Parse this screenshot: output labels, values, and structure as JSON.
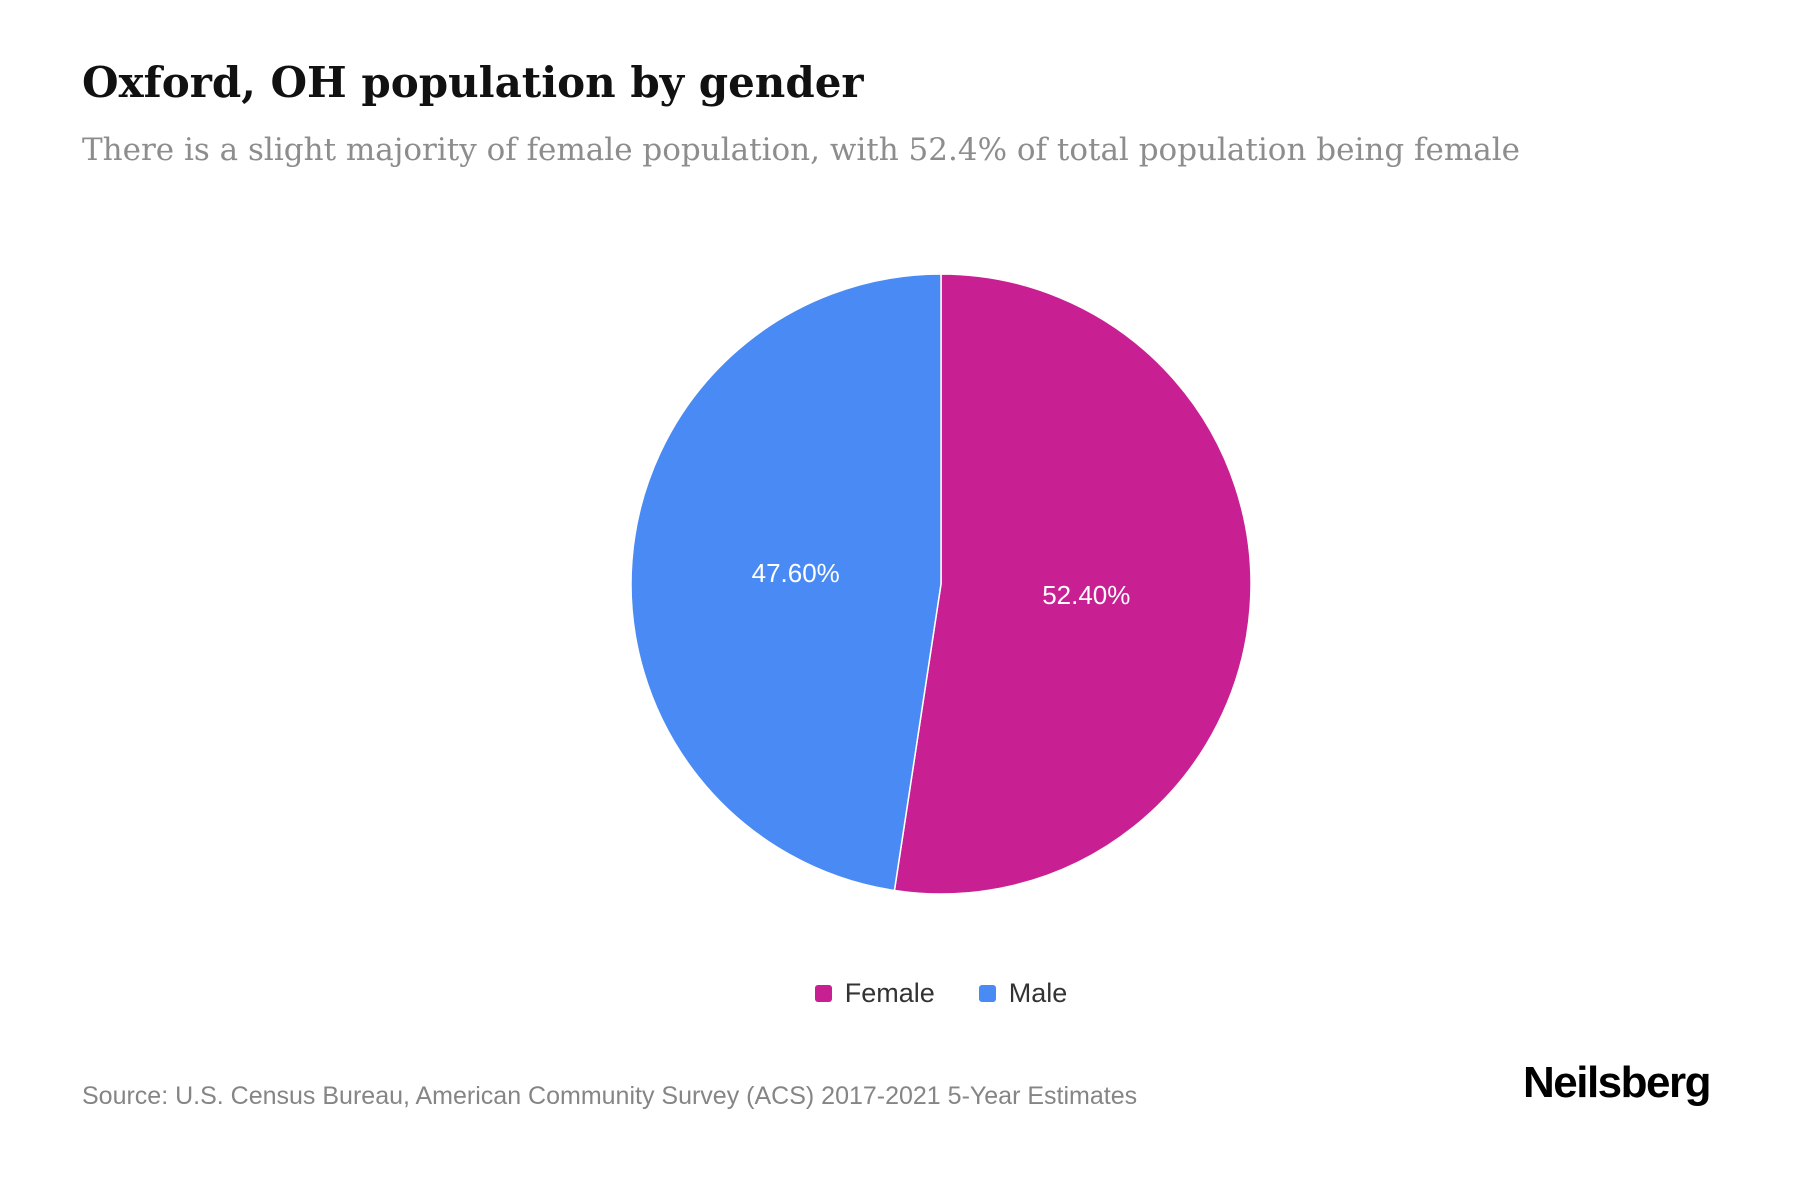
{
  "page": {
    "title": "Oxford, OH population by gender",
    "subtitle": "There is a slight majority of female population, with 52.4% of total population being female",
    "source": "Source: U.S. Census Bureau, American Community Survey (ACS) 2017-2021 5-Year Estimates",
    "brand": "Neilsberg"
  },
  "chart_data": {
    "type": "pie",
    "title": "Oxford, OH population by gender",
    "legend_position": "bottom",
    "label_color": "#ffffff",
    "start_angle_deg": 0,
    "direction": "clockwise",
    "slices": [
      {
        "label": "Female",
        "value": 52.4,
        "display": "52.40%",
        "color": "#C81F93"
      },
      {
        "label": "Male",
        "value": 47.6,
        "display": "47.60%",
        "color": "#4A8AF4"
      }
    ]
  }
}
